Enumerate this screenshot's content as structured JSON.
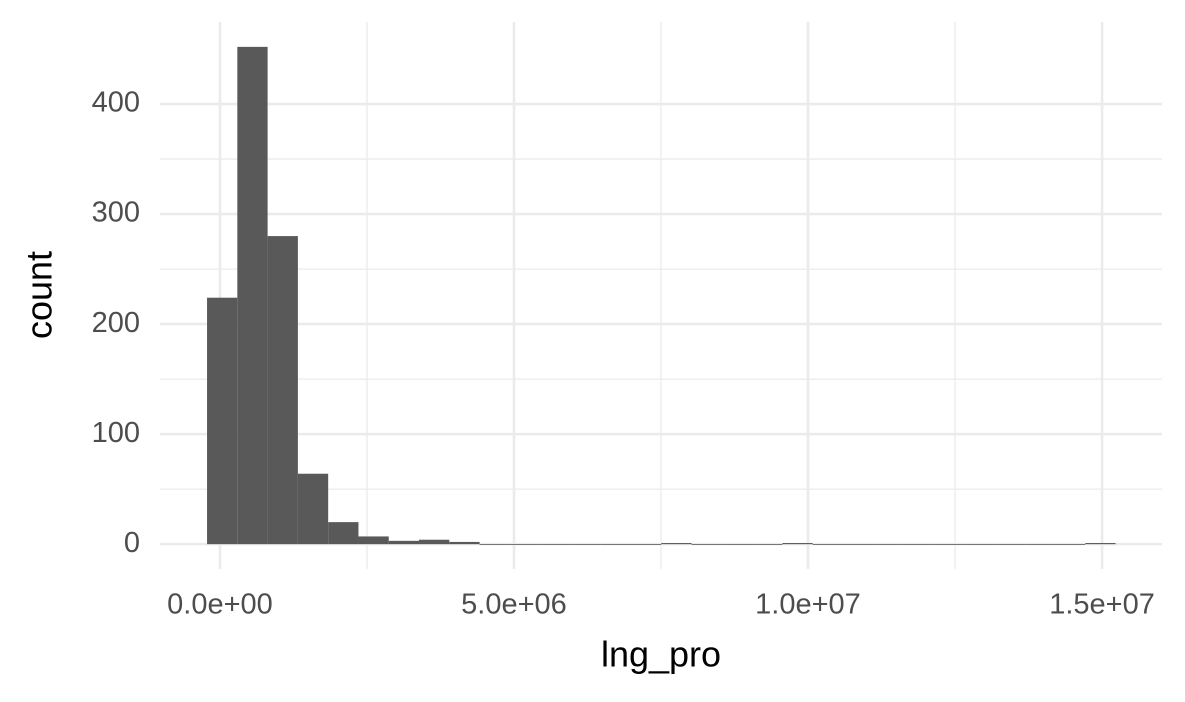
{
  "chart_data": {
    "type": "histogram",
    "x_label": "lng_pro",
    "y_label": "count",
    "bins": [
      -220000,
      295000,
      810000,
      1325000,
      1840000,
      2355000,
      2870000,
      3385000,
      3900000,
      4415000,
      4930000,
      5445000,
      5960000,
      6475000,
      6990000,
      7505000,
      8020000,
      8535000,
      9050000,
      9565000,
      10080000,
      10595000,
      11110000,
      11625000,
      12140000,
      12655000,
      13170000,
      13685000,
      14200000,
      14715000,
      15230000
    ],
    "counts": [
      224,
      452,
      280,
      64,
      20,
      7,
      3,
      4,
      2,
      0,
      0,
      0,
      0,
      0,
      0,
      1,
      0,
      0,
      0,
      1,
      0,
      0,
      0,
      0,
      0,
      0,
      0,
      0,
      0,
      1
    ],
    "color": "#595959",
    "xlim": [
      -1020000,
      16020000
    ],
    "xticks": [
      {
        "value": 0,
        "label": "0.0e+00"
      },
      {
        "value": 5000000,
        "label": "5.0e+06"
      },
      {
        "value": 10000000,
        "label": "1.0e+07"
      },
      {
        "value": 15000000,
        "label": "1.5e+07"
      }
    ],
    "ylim": [
      -22.6,
      474.6
    ],
    "yticks": [
      0,
      100,
      200,
      300,
      400
    ],
    "grid": true
  }
}
